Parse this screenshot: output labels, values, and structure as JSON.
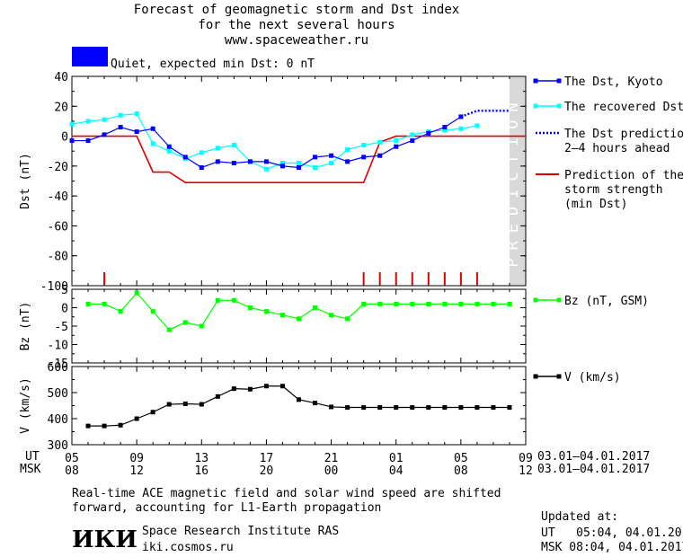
{
  "header": {
    "line1": "Forecast of geomagnetic storm and Dst index",
    "line2": "for the next several hours",
    "line3": "www.spaceweather.ru",
    "status": "Quiet, expected min Dst: 0 nT",
    "status_color": "#0000ff"
  },
  "chart_data": [
    {
      "type": "line",
      "ylabel": "Dst (nT)",
      "ylim": [
        -100,
        40
      ],
      "yticks": [
        40,
        20,
        0,
        -20,
        -40,
        -60,
        -80,
        -100
      ],
      "xlim": [
        5,
        33
      ],
      "prediction_band": [
        32,
        33
      ],
      "prediction_text": "PREDICTION",
      "series": [
        {
          "name": "The Dst, Kyoto",
          "color": "#0000ff",
          "x": [
            5,
            6,
            7,
            8,
            9,
            10,
            11,
            12,
            13,
            14,
            15,
            16,
            17,
            18,
            19,
            20,
            21,
            22,
            23,
            24,
            25,
            26,
            27,
            28,
            29
          ],
          "y": [
            -3,
            -3,
            1,
            6,
            3,
            5,
            -7,
            -14,
            -21,
            -17,
            -18,
            -17,
            -17,
            -20,
            -21,
            -14,
            -13,
            -17,
            -14,
            -13,
            -7,
            -3,
            2,
            6,
            13
          ]
        },
        {
          "name": "The recovered Dst",
          "color": "#00ffff",
          "x": [
            5,
            6,
            7,
            8,
            9,
            10,
            11,
            12,
            13,
            14,
            15,
            16,
            17,
            18,
            19,
            20,
            21,
            22,
            23,
            24,
            25,
            26,
            27,
            28,
            29,
            30
          ],
          "y": [
            8,
            10,
            11,
            14,
            15,
            -5,
            -10,
            -15,
            -11,
            -8,
            -6,
            -17,
            -22,
            -18,
            -18,
            -21,
            -18,
            -9,
            -6,
            -4,
            -3,
            1,
            3,
            4,
            5,
            7
          ]
        },
        {
          "name": "The Dst prediction\n2–4 hours ahead",
          "color": "#0000ff",
          "x": [
            29,
            30,
            31,
            32
          ],
          "y": [
            13,
            17,
            17,
            17
          ]
        },
        {
          "name": "Prediction of the\nstorm strength\n(min Dst)",
          "color": "#dd0000",
          "x": [
            5,
            9,
            10,
            11,
            12,
            17,
            21,
            22,
            23,
            24,
            25,
            33
          ],
          "y": [
            0,
            0,
            -24,
            -24,
            -31,
            -31,
            -31,
            -31,
            -31,
            -4,
            0,
            0
          ]
        }
      ],
      "storm_markers_x": [
        7,
        23,
        24,
        25,
        26,
        27,
        28,
        29,
        30
      ]
    },
    {
      "type": "line",
      "ylabel": "Bz (nT)",
      "ylim": [
        -15,
        5
      ],
      "yticks": [
        5,
        0,
        -5,
        -10,
        -15
      ],
      "series": [
        {
          "name": "Bz (nT, GSM)",
          "color": "#00ff00",
          "x": [
            6,
            7,
            8,
            9,
            10,
            11,
            12,
            13,
            14,
            15,
            16,
            17,
            18,
            19,
            20,
            21,
            22,
            23,
            24,
            25,
            26,
            27,
            28,
            29,
            30,
            31,
            32
          ],
          "y": [
            1,
            1,
            -1,
            4,
            -1,
            -6,
            -4,
            -5,
            2,
            2,
            0,
            -1,
            -2,
            -3,
            0,
            -2,
            -3,
            1,
            1,
            1,
            1,
            1,
            1,
            1,
            1,
            1,
            1
          ]
        }
      ]
    },
    {
      "type": "line",
      "ylabel": "V (km/s)",
      "ylim": [
        300,
        600
      ],
      "yticks": [
        600,
        500,
        400,
        300
      ],
      "series": [
        {
          "name": "V (km/s)",
          "color": "#000000",
          "x": [
            6,
            7,
            8,
            9,
            10,
            11,
            12,
            13,
            14,
            15,
            16,
            17,
            18,
            19,
            20,
            21,
            22,
            23,
            24,
            25,
            26,
            27,
            28,
            29,
            30,
            31,
            32
          ],
          "y": [
            372,
            372,
            375,
            400,
            425,
            455,
            457,
            455,
            485,
            515,
            513,
            525,
            525,
            473,
            460,
            445,
            443,
            443,
            443,
            443,
            443,
            443,
            443,
            443,
            443,
            443,
            443
          ]
        }
      ]
    }
  ],
  "xaxis": {
    "ut_label": "UT",
    "msk_label": "MSK",
    "ut_ticks": [
      "05",
      "09",
      "13",
      "17",
      "21",
      "01",
      "05",
      "09"
    ],
    "msk_ticks": [
      "08",
      "12",
      "16",
      "20",
      "00",
      "04",
      "08",
      "12"
    ],
    "ut_range": "03.01—04.01.2017",
    "msk_range": "03.01—04.01.2017"
  },
  "footer": {
    "note_line1": "Real-time ACE magnetic field and solar wind speed are shifted",
    "note_line2": "forward, accounting for L1-Earth propagation",
    "logo": "ИКИ",
    "institute": "Space Research Institute RAS",
    "site": "iki.cosmos.ru",
    "updated_label": "Updated at:",
    "updated_ut": "UT   05:04, 04.01.2017",
    "updated_msk": "MSK 08:04, 04.01.2017"
  }
}
